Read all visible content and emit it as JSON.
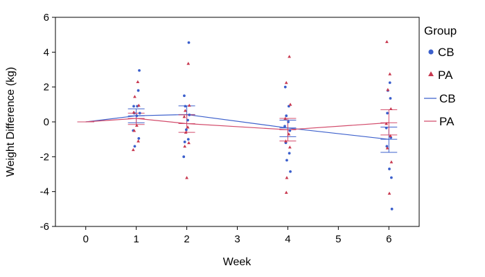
{
  "chart_data": {
    "type": "scatter",
    "title": "",
    "xlabel": "Week",
    "ylabel": "Weight Difference (kg)",
    "xlim": [
      -0.6,
      6.6
    ],
    "ylim": [
      -6,
      6
    ],
    "x_ticks": [
      0,
      1,
      2,
      3,
      4,
      5,
      6
    ],
    "x_tick_labels": [
      "0",
      "1",
      "2",
      "3",
      "4",
      "5",
      "6"
    ],
    "y_ticks": [
      -6,
      -4,
      -2,
      0,
      2,
      4,
      6
    ],
    "y_tick_labels": [
      "-6",
      "-4",
      "-2",
      "0",
      "2",
      "4",
      "6"
    ],
    "grid": false,
    "legend": {
      "title": "Group",
      "placement": "right",
      "entries": [
        {
          "label": "CB",
          "kind": "marker-circle",
          "color": "#3b5fcc"
        },
        {
          "label": "PA",
          "kind": "marker-triangle",
          "color": "#c8384f"
        },
        {
          "label": "CB",
          "kind": "line",
          "color": "#3b5fcc"
        },
        {
          "label": "PA",
          "kind": "line",
          "color": "#d24a6a"
        }
      ]
    },
    "colors": {
      "CB": "#3b5fcc",
      "PA": "#c8384f",
      "CB_line": "#3b5fcc",
      "PA_line": "#d24a6a"
    },
    "scatter_series": [
      {
        "name": "CB",
        "marker": "circle",
        "points": [
          {
            "x": 0.96,
            "y": 0.5
          },
          {
            "x": 1.02,
            "y": 0.9
          },
          {
            "x": 1.04,
            "y": 1.8
          },
          {
            "x": 1.06,
            "y": 2.95
          },
          {
            "x": 0.94,
            "y": -0.5
          },
          {
            "x": 1.05,
            "y": -0.95
          },
          {
            "x": 0.97,
            "y": -1.4
          },
          {
            "x": 1.01,
            "y": 0.35
          },
          {
            "x": 1.07,
            "y": 0.5
          },
          {
            "x": 0.95,
            "y": 0.9
          },
          {
            "x": 1.95,
            "y": 1.5
          },
          {
            "x": 2.04,
            "y": 4.55
          },
          {
            "x": 1.97,
            "y": 0.9
          },
          {
            "x": 2.02,
            "y": 0.1
          },
          {
            "x": 1.96,
            "y": -1.15
          },
          {
            "x": 2.03,
            "y": -1.0
          },
          {
            "x": 1.94,
            "y": -2.0
          },
          {
            "x": 2.05,
            "y": 0.4
          },
          {
            "x": 1.99,
            "y": -0.45
          },
          {
            "x": 3.95,
            "y": 2.0
          },
          {
            "x": 4.02,
            "y": 0.9
          },
          {
            "x": 3.97,
            "y": 0.35
          },
          {
            "x": 4.04,
            "y": -0.5
          },
          {
            "x": 3.96,
            "y": -1.2
          },
          {
            "x": 4.03,
            "y": -1.8
          },
          {
            "x": 3.98,
            "y": -2.2
          },
          {
            "x": 4.05,
            "y": -2.85
          },
          {
            "x": 3.94,
            "y": -0.25
          },
          {
            "x": 4.01,
            "y": 0.0
          },
          {
            "x": 6.02,
            "y": 2.25
          },
          {
            "x": 5.98,
            "y": 1.8
          },
          {
            "x": 6.03,
            "y": 1.35
          },
          {
            "x": 5.97,
            "y": 0.5
          },
          {
            "x": 6.04,
            "y": -0.9
          },
          {
            "x": 5.96,
            "y": -1.4
          },
          {
            "x": 6.01,
            "y": -2.7
          },
          {
            "x": 6.05,
            "y": -3.2
          },
          {
            "x": 6.06,
            "y": -5.0
          },
          {
            "x": 5.95,
            "y": -0.35
          }
        ]
      },
      {
        "name": "PA",
        "marker": "triangle",
        "points": [
          {
            "x": 1.03,
            "y": 2.3
          },
          {
            "x": 0.97,
            "y": 1.45
          },
          {
            "x": 1.05,
            "y": 0.95
          },
          {
            "x": 0.95,
            "y": 0.55
          },
          {
            "x": 1.01,
            "y": -0.2
          },
          {
            "x": 0.96,
            "y": -0.5
          },
          {
            "x": 1.04,
            "y": -1.1
          },
          {
            "x": 0.94,
            "y": -1.6
          },
          {
            "x": 2.03,
            "y": 3.35
          },
          {
            "x": 1.97,
            "y": 0.65
          },
          {
            "x": 2.05,
            "y": 0.95
          },
          {
            "x": 1.95,
            "y": 0.3
          },
          {
            "x": 2.02,
            "y": -0.3
          },
          {
            "x": 1.98,
            "y": -0.6
          },
          {
            "x": 2.04,
            "y": -1.2
          },
          {
            "x": 1.96,
            "y": -1.4
          },
          {
            "x": 2.0,
            "y": -3.2
          },
          {
            "x": 4.03,
            "y": 3.75
          },
          {
            "x": 3.97,
            "y": 2.25
          },
          {
            "x": 4.05,
            "y": 1.0
          },
          {
            "x": 3.95,
            "y": 0.2
          },
          {
            "x": 4.02,
            "y": -0.7
          },
          {
            "x": 3.96,
            "y": -1.1
          },
          {
            "x": 4.04,
            "y": -1.45
          },
          {
            "x": 3.98,
            "y": -3.2
          },
          {
            "x": 3.97,
            "y": -4.05
          },
          {
            "x": 5.96,
            "y": 4.6
          },
          {
            "x": 6.02,
            "y": 2.75
          },
          {
            "x": 5.98,
            "y": 1.85
          },
          {
            "x": 6.04,
            "y": 0.75
          },
          {
            "x": 5.95,
            "y": -0.1
          },
          {
            "x": 6.03,
            "y": -0.8
          },
          {
            "x": 5.97,
            "y": -1.5
          },
          {
            "x": 6.05,
            "y": -2.3
          },
          {
            "x": 6.01,
            "y": -4.1
          }
        ]
      }
    ],
    "line_series": [
      {
        "name": "CB",
        "x": [
          0,
          1,
          2,
          4,
          6
        ],
        "y": [
          0.0,
          0.35,
          0.42,
          -0.35,
          -1.0
        ],
        "err_low": [
          0.0,
          -0.05,
          -0.1,
          -0.85,
          -1.75
        ],
        "err_high": [
          0.0,
          0.75,
          0.92,
          0.1,
          -0.3
        ]
      },
      {
        "name": "PA",
        "x": [
          0,
          1,
          2,
          4,
          6
        ],
        "y": [
          0.0,
          0.2,
          -0.1,
          -0.45,
          -0.05
        ],
        "err_low": [
          0.0,
          -0.15,
          -0.6,
          -1.1,
          -0.75
        ],
        "err_high": [
          0.0,
          0.5,
          0.4,
          0.2,
          0.7
        ]
      }
    ]
  }
}
